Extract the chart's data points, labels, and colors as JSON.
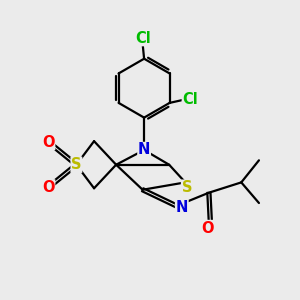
{
  "bg_color": "#ebebeb",
  "bond_color": "#000000",
  "bond_width": 1.6,
  "dbo": 0.06,
  "atom_colors": {
    "N": "#0000dd",
    "S": "#bbbb00",
    "O": "#ff0000",
    "Cl": "#00bb00"
  },
  "fs": 10.5
}
